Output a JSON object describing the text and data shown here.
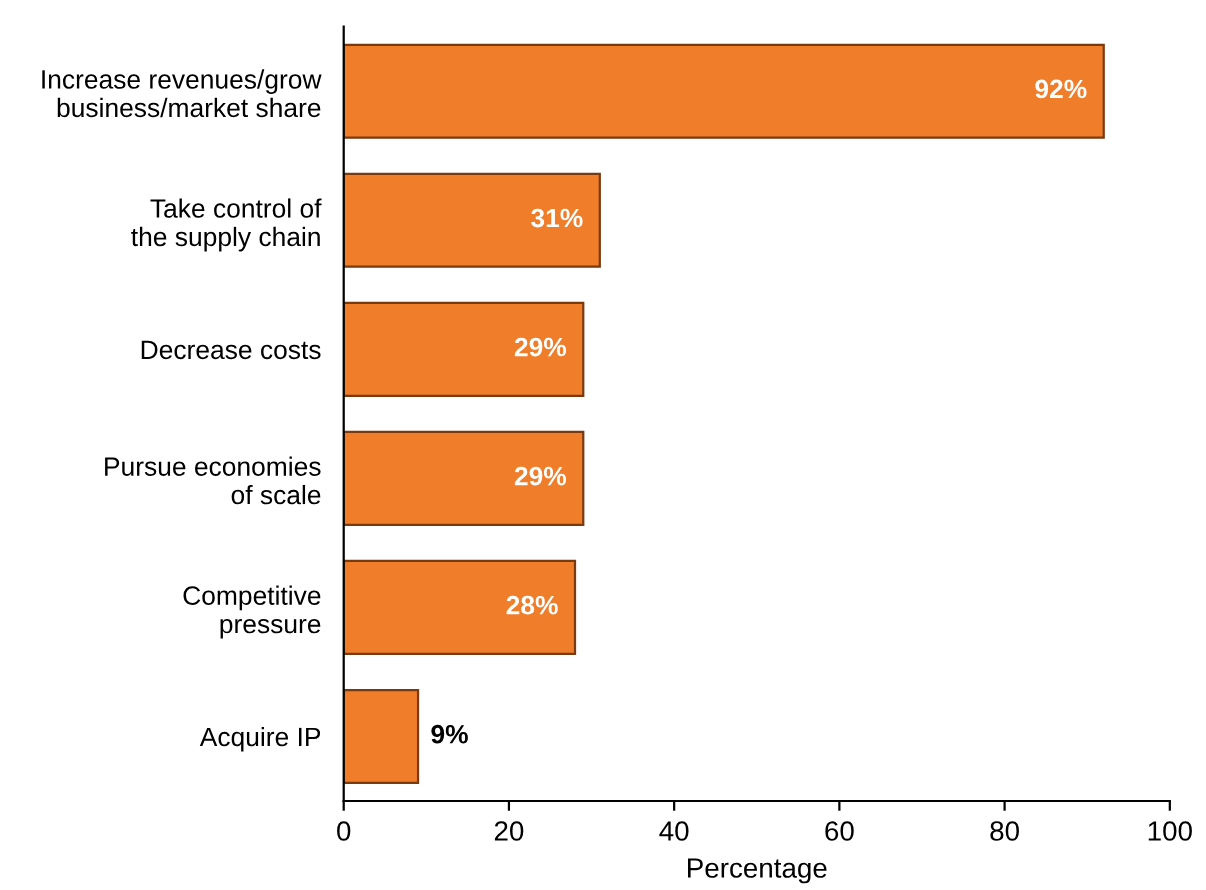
{
  "chart_data": {
    "type": "bar",
    "orientation": "horizontal",
    "xlabel": "Percentage",
    "categories": [
      "Increase revenues/grow\nbusiness/market share",
      "Take control of\nthe supply chain",
      "Decrease costs",
      "Pursue economies\nof scale",
      "Competitive\npressure",
      "Acquire IP"
    ],
    "values": [
      92,
      31,
      29,
      29,
      28,
      9
    ],
    "value_labels": [
      "92%",
      "31%",
      "29%",
      "29%",
      "28%",
      "9%"
    ],
    "color": "#f07d2a",
    "xlim": [
      0,
      100
    ],
    "xticks": [
      0,
      20,
      40,
      60,
      80,
      100
    ],
    "grid": false,
    "legend": false
  }
}
